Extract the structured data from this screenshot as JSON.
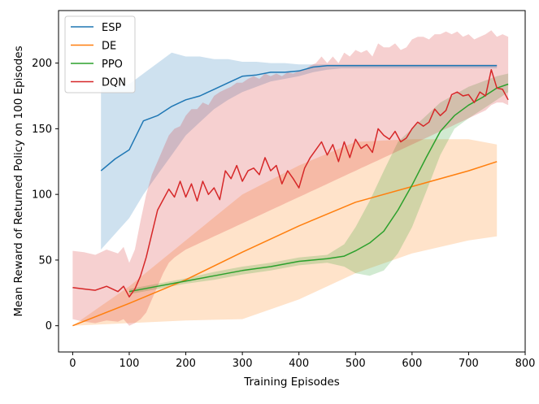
{
  "chart_data": {
    "type": "line",
    "xlabel": "Training Episodes",
    "ylabel": "Mean Reward of Returned Policy on 100 Episodes",
    "xlim": [
      -25,
      800
    ],
    "ylim": [
      -20,
      240
    ],
    "xticks": [
      0,
      100,
      200,
      300,
      400,
      500,
      600,
      700,
      800
    ],
    "yticks": [
      0,
      50,
      100,
      150,
      200
    ],
    "grid": false,
    "legend_position": "top-left",
    "series": [
      {
        "name": "ESP",
        "color": "#1f77b4",
        "x": [
          50,
          75,
          100,
          125,
          150,
          175,
          200,
          225,
          250,
          275,
          300,
          325,
          350,
          375,
          400,
          425,
          450,
          475,
          500,
          550,
          600,
          650,
          700,
          750
        ],
        "y": [
          118,
          127,
          134,
          156,
          160,
          167,
          172,
          175,
          180,
          185,
          190,
          191,
          193,
          193,
          194,
          197,
          198,
          198,
          198,
          198,
          198,
          198,
          198,
          198
        ],
        "band_low": [
          58,
          70,
          82,
          100,
          115,
          130,
          145,
          155,
          165,
          172,
          178,
          182,
          186,
          188,
          190,
          193,
          195,
          196,
          196,
          196,
          196,
          196,
          196,
          196
        ],
        "band_high": [
          182,
          183,
          184,
          192,
          200,
          208,
          205,
          205,
          203,
          203,
          201,
          201,
          200,
          200,
          199,
          199,
          199,
          199,
          199,
          199,
          199,
          199,
          199,
          199
        ]
      },
      {
        "name": "DE",
        "color": "#ff7f0e",
        "x": [
          0,
          100,
          200,
          300,
          400,
          500,
          600,
          700,
          750
        ],
        "y": [
          0,
          17,
          35,
          56,
          76,
          94,
          106,
          118,
          125
        ],
        "band_low": [
          0,
          2,
          4,
          5,
          20,
          40,
          55,
          65,
          68
        ],
        "band_high": [
          0,
          30,
          65,
          100,
          122,
          140,
          142,
          142,
          138
        ]
      },
      {
        "name": "PPO",
        "color": "#2ca02c",
        "x": [
          100,
          150,
          200,
          250,
          300,
          350,
          400,
          450,
          480,
          500,
          525,
          550,
          575,
          600,
          625,
          650,
          675,
          700,
          725,
          750,
          770
        ],
        "y": [
          26,
          30,
          34,
          38,
          42,
          45,
          49,
          51,
          53,
          57,
          63,
          72,
          88,
          107,
          128,
          148,
          160,
          168,
          174,
          181,
          184
        ],
        "band_low": [
          24,
          28,
          32,
          35,
          39,
          42,
          46,
          48,
          45,
          40,
          38,
          42,
          55,
          75,
          102,
          130,
          150,
          158,
          165,
          172,
          178
        ],
        "band_high": [
          28,
          32,
          36,
          41,
          45,
          48,
          52,
          54,
          62,
          75,
          95,
          118,
          140,
          150,
          160,
          170,
          176,
          182,
          186,
          190,
          192
        ]
      },
      {
        "name": "DQN",
        "color": "#d62728",
        "x": [
          0,
          20,
          40,
          60,
          80,
          90,
          100,
          110,
          120,
          130,
          140,
          150,
          160,
          170,
          180,
          190,
          200,
          210,
          220,
          230,
          240,
          250,
          260,
          270,
          280,
          290,
          300,
          310,
          320,
          330,
          340,
          350,
          360,
          370,
          380,
          390,
          400,
          410,
          420,
          430,
          440,
          450,
          460,
          470,
          480,
          490,
          500,
          510,
          520,
          530,
          540,
          550,
          560,
          570,
          580,
          590,
          600,
          610,
          620,
          630,
          640,
          650,
          660,
          670,
          680,
          690,
          700,
          710,
          720,
          730,
          740,
          750,
          760,
          770
        ],
        "y": [
          29,
          28,
          27,
          30,
          26,
          30,
          22,
          28,
          38,
          52,
          70,
          88,
          96,
          104,
          98,
          110,
          98,
          108,
          95,
          110,
          100,
          105,
          96,
          118,
          112,
          122,
          110,
          118,
          120,
          115,
          128,
          118,
          122,
          108,
          118,
          112,
          105,
          120,
          128,
          134,
          140,
          130,
          138,
          125,
          140,
          128,
          142,
          135,
          138,
          132,
          150,
          145,
          142,
          148,
          140,
          143,
          150,
          155,
          152,
          155,
          165,
          160,
          164,
          176,
          178,
          175,
          176,
          170,
          178,
          175,
          195,
          181,
          180,
          172
        ],
        "band_low": [
          5,
          3,
          2,
          4,
          3,
          5,
          0,
          2,
          5,
          10,
          20,
          30,
          40,
          48,
          52,
          55,
          58,
          60,
          62,
          64,
          66,
          68,
          70,
          72,
          74,
          76,
          78,
          80,
          82,
          84,
          86,
          88,
          90,
          92,
          94,
          96,
          98,
          100,
          102,
          104,
          106,
          108,
          110,
          112,
          114,
          116,
          118,
          120,
          122,
          124,
          126,
          128,
          130,
          132,
          134,
          136,
          138,
          140,
          142,
          144,
          146,
          148,
          150,
          152,
          154,
          156,
          158,
          160,
          162,
          164,
          168,
          170,
          170,
          168
        ],
        "band_high": [
          57,
          56,
          54,
          58,
          55,
          60,
          48,
          58,
          80,
          100,
          115,
          125,
          135,
          145,
          150,
          152,
          160,
          165,
          165,
          170,
          168,
          175,
          178,
          180,
          182,
          185,
          185,
          188,
          190,
          188,
          192,
          190,
          192,
          190,
          193,
          192,
          194,
          195,
          198,
          200,
          205,
          200,
          205,
          200,
          208,
          205,
          210,
          208,
          210,
          205,
          215,
          212,
          212,
          215,
          210,
          212,
          218,
          220,
          220,
          218,
          222,
          222,
          224,
          222,
          224,
          220,
          222,
          218,
          220,
          222,
          225,
          220,
          222,
          220
        ]
      }
    ]
  }
}
